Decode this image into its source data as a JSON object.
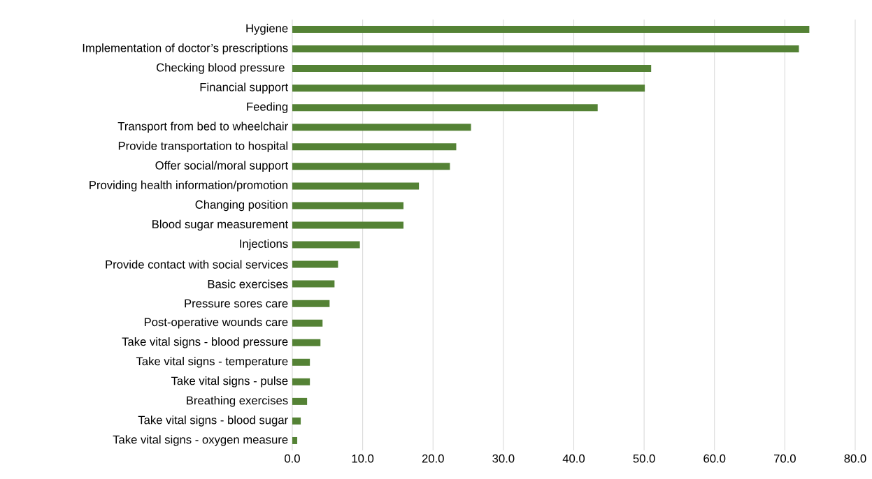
{
  "chart_data": {
    "type": "bar",
    "orientation": "horizontal",
    "color": "#548235",
    "grid": "x",
    "categories": [
      "Hygiene",
      "Implementation of doctor’s prescriptions",
      "Checking blood pressure ",
      "Financial support",
      "Feeding",
      "Transport from bed to wheelchair",
      "Provide transportation to hospital",
      "Offer social/moral support",
      "Providing health information/promotion",
      "Changing position",
      "Blood sugar measurement",
      "Injections",
      "Provide contact with social services",
      "Basic exercises",
      "Pressure sores care",
      "Post-operative wounds care",
      "Take vital signs - blood pressure",
      "Take vital signs - temperature",
      "Take vital signs - pulse",
      "Breathing exercises",
      "Take vital signs - blood sugar",
      "Take vital signs - oxygen measure"
    ],
    "values": [
      73.5,
      72.0,
      51.0,
      50.1,
      43.4,
      25.4,
      23.3,
      22.4,
      18.0,
      15.8,
      15.8,
      9.6,
      6.5,
      6.0,
      5.3,
      4.3,
      4.0,
      2.5,
      2.5,
      2.1,
      1.2,
      0.7
    ],
    "xlim": [
      0,
      80
    ],
    "xticks": [
      {
        "value": 0,
        "label": "0.0"
      },
      {
        "value": 10,
        "label": "10.0"
      },
      {
        "value": 20,
        "label": "20.0"
      },
      {
        "value": 30,
        "label": "30.0"
      },
      {
        "value": 40,
        "label": "40.0"
      },
      {
        "value": 50,
        "label": "50.0"
      },
      {
        "value": 60,
        "label": "60.0"
      },
      {
        "value": 70,
        "label": "70.0"
      },
      {
        "value": 80,
        "label": "80.0"
      }
    ]
  }
}
